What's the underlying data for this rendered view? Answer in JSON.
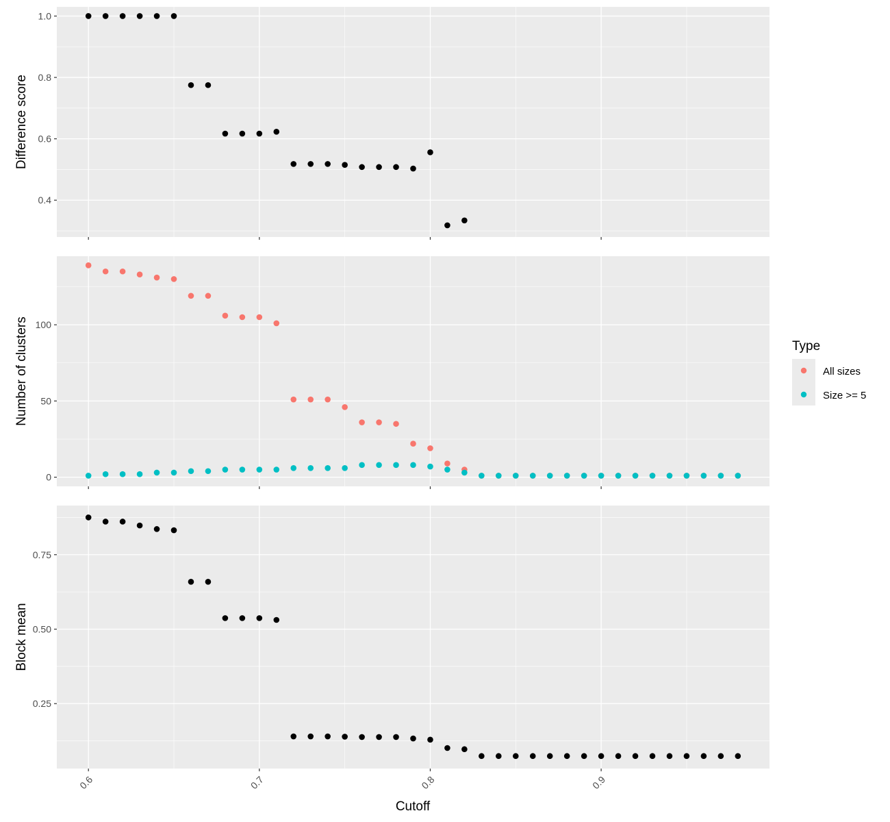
{
  "chart_data": {
    "type": "scatter",
    "x_label": "Cutoff",
    "x_ticks": [
      0.6,
      0.7,
      0.8,
      0.9
    ],
    "x_tick_labels": [
      "0.6",
      "0.7",
      "0.8",
      "0.9"
    ],
    "xlim": [
      0.5815,
      0.9985
    ],
    "grid": true,
    "legend": {
      "title": "Type",
      "position": "right",
      "entries": [
        {
          "name": "All sizes",
          "color": "#F8766D"
        },
        {
          "name": "Size >= 5",
          "color": "#00BFC4"
        }
      ]
    },
    "panels": [
      {
        "id": "difference",
        "ylabel": "Difference score",
        "ylim": [
          0.28,
          1.03
        ],
        "y_ticks": [
          0.4,
          0.6,
          0.8,
          1.0
        ],
        "y_tick_labels": [
          "0.4",
          "0.6",
          "0.8",
          "1.0"
        ],
        "series": [
          {
            "color": "#000000",
            "points": [
              [
                0.6,
                1.0
              ],
              [
                0.61,
                1.0
              ],
              [
                0.62,
                1.0
              ],
              [
                0.63,
                1.0
              ],
              [
                0.64,
                1.0
              ],
              [
                0.65,
                1.0
              ],
              [
                0.66,
                0.775
              ],
              [
                0.67,
                0.775
              ],
              [
                0.68,
                0.617
              ],
              [
                0.69,
                0.617
              ],
              [
                0.7,
                0.617
              ],
              [
                0.71,
                0.623
              ],
              [
                0.72,
                0.518
              ],
              [
                0.73,
                0.518
              ],
              [
                0.74,
                0.518
              ],
              [
                0.75,
                0.515
              ],
              [
                0.76,
                0.508
              ],
              [
                0.77,
                0.508
              ],
              [
                0.78,
                0.508
              ],
              [
                0.79,
                0.503
              ],
              [
                0.8,
                0.556
              ],
              [
                0.81,
                0.318
              ],
              [
                0.82,
                0.334
              ]
            ]
          }
        ]
      },
      {
        "id": "clusters",
        "ylabel": "Number of clusters",
        "ylim": [
          -6,
          145
        ],
        "y_ticks": [
          0,
          50,
          100
        ],
        "y_tick_labels": [
          "0",
          "50",
          "100"
        ],
        "series": [
          {
            "name": "All sizes",
            "color": "#F8766D",
            "points": [
              [
                0.6,
                139
              ],
              [
                0.61,
                135
              ],
              [
                0.62,
                135
              ],
              [
                0.63,
                133
              ],
              [
                0.64,
                131
              ],
              [
                0.65,
                130
              ],
              [
                0.66,
                119
              ],
              [
                0.67,
                119
              ],
              [
                0.68,
                106
              ],
              [
                0.69,
                105
              ],
              [
                0.7,
                105
              ],
              [
                0.71,
                101
              ],
              [
                0.72,
                51
              ],
              [
                0.73,
                51
              ],
              [
                0.74,
                51
              ],
              [
                0.75,
                46
              ],
              [
                0.76,
                36
              ],
              [
                0.77,
                36
              ],
              [
                0.78,
                35
              ],
              [
                0.79,
                22
              ],
              [
                0.8,
                19
              ],
              [
                0.81,
                9
              ],
              [
                0.82,
                5
              ],
              [
                0.83,
                1
              ],
              [
                0.84,
                1
              ],
              [
                0.85,
                1
              ],
              [
                0.86,
                1
              ],
              [
                0.87,
                1
              ],
              [
                0.88,
                1
              ],
              [
                0.89,
                1
              ],
              [
                0.9,
                1
              ],
              [
                0.91,
                1
              ],
              [
                0.92,
                1
              ],
              [
                0.93,
                1
              ],
              [
                0.94,
                1
              ],
              [
                0.95,
                1
              ],
              [
                0.96,
                1
              ],
              [
                0.97,
                1
              ],
              [
                0.98,
                1
              ]
            ]
          },
          {
            "name": "Size >= 5",
            "color": "#00BFC4",
            "points": [
              [
                0.6,
                1
              ],
              [
                0.61,
                2
              ],
              [
                0.62,
                2
              ],
              [
                0.63,
                2
              ],
              [
                0.64,
                3
              ],
              [
                0.65,
                3
              ],
              [
                0.66,
                4
              ],
              [
                0.67,
                4
              ],
              [
                0.68,
                5
              ],
              [
                0.69,
                5
              ],
              [
                0.7,
                5
              ],
              [
                0.71,
                5
              ],
              [
                0.72,
                6
              ],
              [
                0.73,
                6
              ],
              [
                0.74,
                6
              ],
              [
                0.75,
                6
              ],
              [
                0.76,
                8
              ],
              [
                0.77,
                8
              ],
              [
                0.78,
                8
              ],
              [
                0.79,
                8
              ],
              [
                0.8,
                7
              ],
              [
                0.81,
                5
              ],
              [
                0.82,
                3
              ],
              [
                0.83,
                1
              ],
              [
                0.84,
                1
              ],
              [
                0.85,
                1
              ],
              [
                0.86,
                1
              ],
              [
                0.87,
                1
              ],
              [
                0.88,
                1
              ],
              [
                0.89,
                1
              ],
              [
                0.9,
                1
              ],
              [
                0.91,
                1
              ],
              [
                0.92,
                1
              ],
              [
                0.93,
                1
              ],
              [
                0.94,
                1
              ],
              [
                0.95,
                1
              ],
              [
                0.96,
                1
              ],
              [
                0.97,
                1
              ],
              [
                0.98,
                1
              ]
            ]
          }
        ]
      },
      {
        "id": "blockmean",
        "ylabel": "Block mean",
        "ylim": [
          0.032,
          0.915
        ],
        "y_ticks": [
          0.25,
          0.5,
          0.75
        ],
        "y_tick_labels": [
          "0.25",
          "0.50",
          "0.75"
        ],
        "series": [
          {
            "color": "#000000",
            "points": [
              [
                0.6,
                0.875
              ],
              [
                0.61,
                0.861
              ],
              [
                0.62,
                0.861
              ],
              [
                0.63,
                0.848
              ],
              [
                0.64,
                0.836
              ],
              [
                0.65,
                0.832
              ],
              [
                0.66,
                0.659
              ],
              [
                0.67,
                0.659
              ],
              [
                0.68,
                0.537
              ],
              [
                0.69,
                0.537
              ],
              [
                0.7,
                0.537
              ],
              [
                0.71,
                0.531
              ],
              [
                0.72,
                0.14
              ],
              [
                0.73,
                0.14
              ],
              [
                0.74,
                0.14
              ],
              [
                0.75,
                0.139
              ],
              [
                0.76,
                0.138
              ],
              [
                0.77,
                0.138
              ],
              [
                0.78,
                0.138
              ],
              [
                0.79,
                0.133
              ],
              [
                0.8,
                0.129
              ],
              [
                0.81,
                0.101
              ],
              [
                0.82,
                0.097
              ],
              [
                0.83,
                0.074
              ],
              [
                0.84,
                0.074
              ],
              [
                0.85,
                0.074
              ],
              [
                0.86,
                0.074
              ],
              [
                0.87,
                0.074
              ],
              [
                0.88,
                0.074
              ],
              [
                0.89,
                0.074
              ],
              [
                0.9,
                0.074
              ],
              [
                0.91,
                0.074
              ],
              [
                0.92,
                0.074
              ],
              [
                0.93,
                0.074
              ],
              [
                0.94,
                0.074
              ],
              [
                0.95,
                0.074
              ],
              [
                0.96,
                0.074
              ],
              [
                0.97,
                0.074
              ],
              [
                0.98,
                0.074
              ]
            ]
          }
        ]
      }
    ]
  }
}
